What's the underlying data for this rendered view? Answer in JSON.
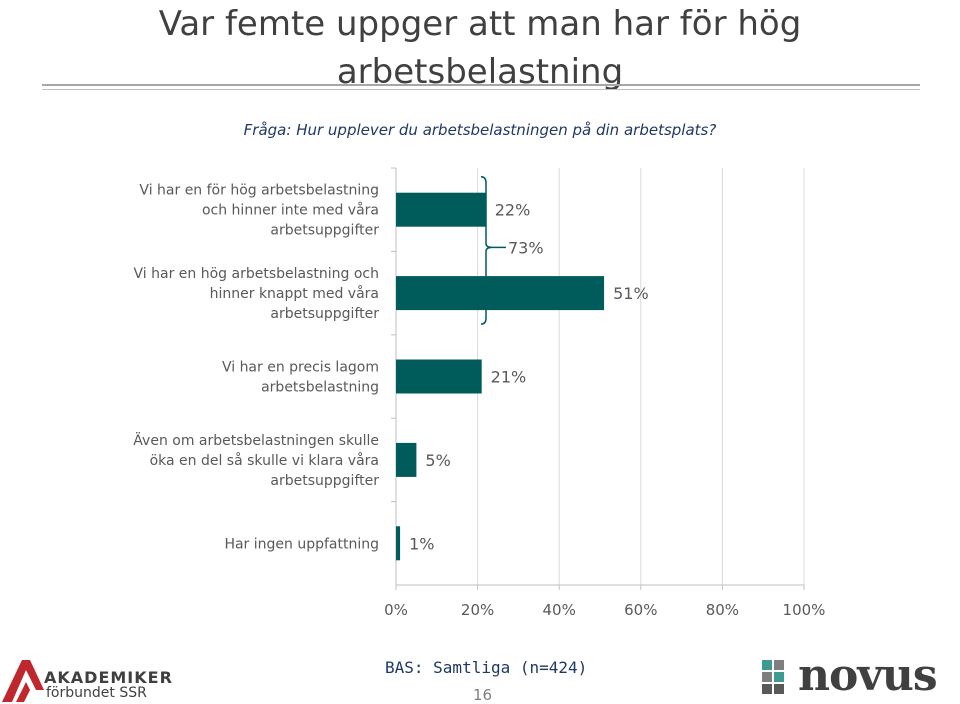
{
  "slide": {
    "title_line1": "Var femte uppger att man har för hög",
    "title_line2": "arbetsbelastning",
    "question": "Fråga: Hur upplever du arbetsbelastningen på din arbetsplats?",
    "base": "BAS: Samtliga (n=424)",
    "page_number": "16",
    "logo_left_line1": "AKADEMIKER",
    "logo_left_line2": "förbundet SSR",
    "logo_right": "novus"
  },
  "chart_data": {
    "type": "bar",
    "orientation": "horizontal",
    "categories": [
      [
        "Vi har en för hög arbetsbelastning",
        "och hinner inte med våra",
        "arbetsuppgifter"
      ],
      [
        "Vi har en hög arbetsbelastning och",
        "hinner knappt med våra",
        "arbetsuppgifter"
      ],
      [
        "Vi har en precis lagom",
        "arbetsbelastning"
      ],
      [
        "Även om arbetsbelastningen skulle",
        "öka en del så skulle vi klara våra",
        "arbetsuppgifter"
      ],
      [
        "Har ingen uppfattning"
      ]
    ],
    "values": [
      22,
      51,
      21,
      5,
      1
    ],
    "value_labels": [
      "22%",
      "51%",
      "21%",
      "5%",
      "1%"
    ],
    "bracket": {
      "categories": [
        0,
        1
      ],
      "label": "73%"
    },
    "xlim": [
      0,
      100
    ],
    "xticks": [
      "0%",
      "20%",
      "40%",
      "60%",
      "80%",
      "100%"
    ],
    "bar_color": "#005b5b",
    "grid": true,
    "legend": "none"
  }
}
